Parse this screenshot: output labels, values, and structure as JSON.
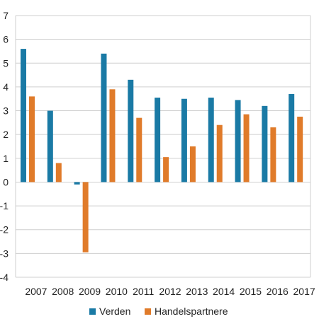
{
  "chart_data": {
    "type": "bar",
    "title": "",
    "xlabel": "",
    "ylabel": "",
    "categories": [
      "2007",
      "2008",
      "2009",
      "2010",
      "2011",
      "2012",
      "2013",
      "2014",
      "2015",
      "2016",
      "2017"
    ],
    "series": [
      {
        "name": "Verden",
        "color": "#1a7aa5",
        "values": [
          5.6,
          3.0,
          -0.1,
          5.4,
          4.3,
          3.55,
          3.5,
          3.55,
          3.45,
          3.2,
          3.7
        ]
      },
      {
        "name": "Handelspartnere",
        "color": "#e07b2a",
        "values": [
          3.6,
          0.8,
          -2.95,
          3.9,
          2.7,
          1.05,
          1.5,
          2.4,
          2.85,
          2.3,
          2.75
        ]
      }
    ],
    "ylim": [
      -4,
      7
    ],
    "yticks": [
      "7",
      "6",
      "5",
      "4",
      "3",
      "2",
      "1",
      "0",
      "-1",
      "-2",
      "-3",
      "-4"
    ],
    "grid": true,
    "legend_position": "bottom-center"
  }
}
